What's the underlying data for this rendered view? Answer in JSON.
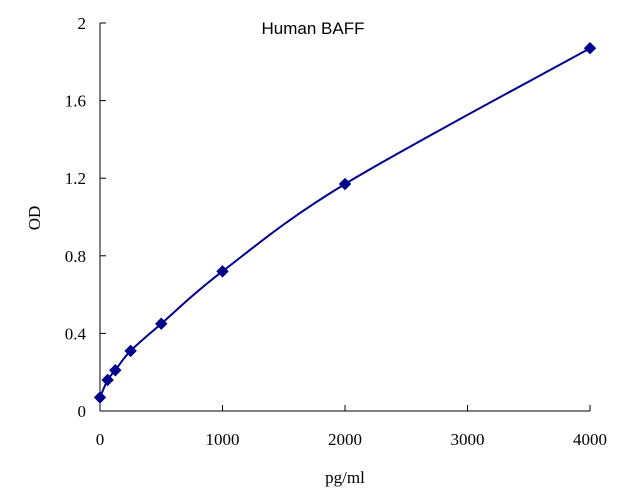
{
  "chart_data": {
    "type": "scatter",
    "title": "Human BAFF",
    "xlabel": "pg/ml",
    "ylabel": "OD",
    "xlim": [
      0,
      4000
    ],
    "ylim": [
      0,
      2
    ],
    "x_ticks": [
      0,
      1000,
      2000,
      3000,
      4000
    ],
    "x_tick_labels": [
      "0",
      "1000",
      "2000",
      "3000",
      "4000"
    ],
    "y_ticks": [
      0,
      0.4,
      0.8,
      1.2,
      1.6,
      2
    ],
    "y_tick_labels": [
      "0",
      "0.4",
      "0.8",
      "1.2",
      "1.6",
      "2"
    ],
    "grid": false,
    "legend": "none",
    "marker": "diamond",
    "fit": "smooth-curve",
    "series": [
      {
        "color": "#00008b",
        "x": [
          0,
          62.5,
          125,
          250,
          500,
          1000,
          2000,
          4000
        ],
        "y": [
          0.07,
          0.16,
          0.21,
          0.31,
          0.45,
          0.72,
          1.17,
          1.87
        ]
      }
    ]
  }
}
